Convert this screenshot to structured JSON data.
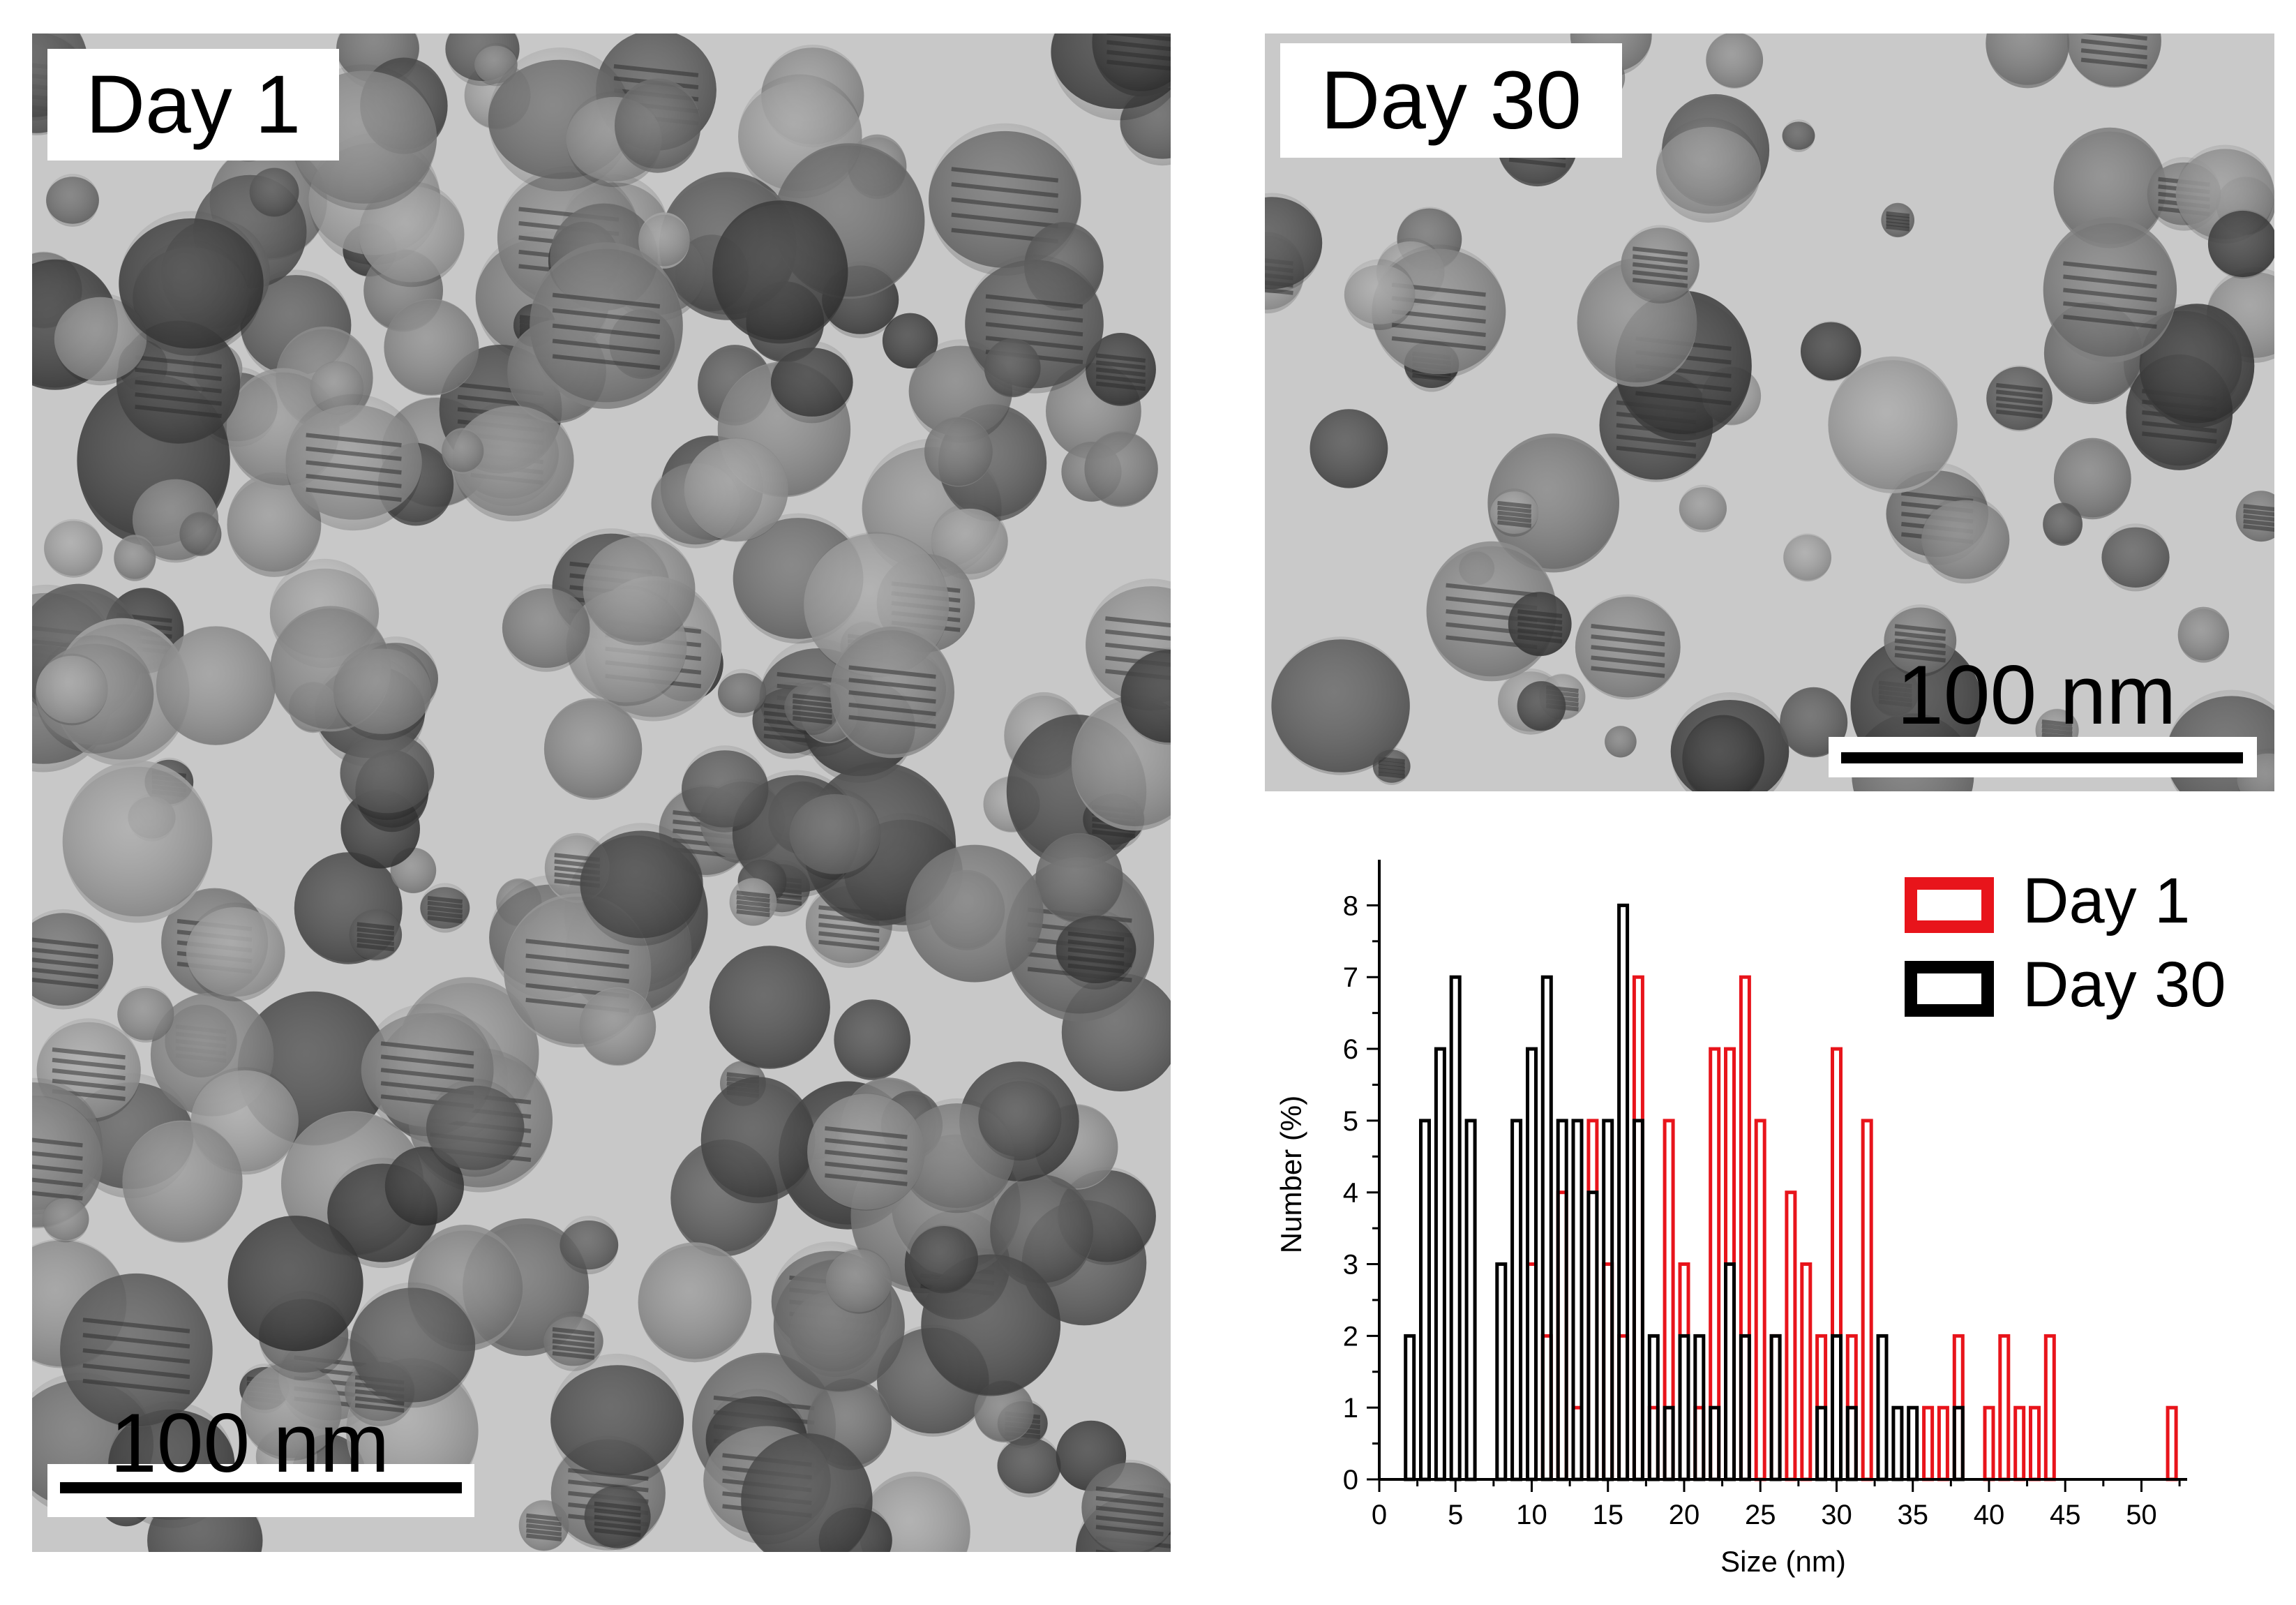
{
  "panels": {
    "day1": {
      "label": "Day 1",
      "scale": "100 nm"
    },
    "day30": {
      "label": "Day 30",
      "scale": "100 nm"
    }
  },
  "chart_data": {
    "type": "bar",
    "xlabel": "Size (nm)",
    "ylabel": "Number (%)",
    "xlim": [
      0,
      53
    ],
    "ylim": [
      0,
      8.5
    ],
    "xticks": [
      0,
      5,
      10,
      15,
      20,
      25,
      30,
      35,
      40,
      45,
      50
    ],
    "yticks": [
      0,
      1,
      2,
      3,
      4,
      5,
      6,
      7,
      8
    ],
    "legend_position": "top-right",
    "bar_style": "outlined",
    "series": [
      {
        "name": "Day 1",
        "color": "#e8141b",
        "x": [
          10,
          11,
          12,
          13,
          14,
          15,
          16,
          17,
          18,
          19,
          20,
          21,
          22,
          23,
          24,
          25,
          26,
          27,
          28,
          29,
          30,
          31,
          32,
          36,
          37,
          38,
          40,
          41,
          42,
          43,
          44,
          52
        ],
        "y": [
          3,
          2,
          4,
          1,
          5,
          3,
          2,
          7,
          1,
          5,
          3,
          1,
          6,
          6,
          7,
          5,
          2,
          4,
          3,
          2,
          6,
          2,
          5,
          1,
          1,
          2,
          1,
          2,
          1,
          1,
          2,
          1
        ]
      },
      {
        "name": "Day 30",
        "color": "#000000",
        "x": [
          2,
          3,
          4,
          5,
          6,
          8,
          9,
          10,
          11,
          12,
          13,
          14,
          15,
          16,
          17,
          18,
          19,
          20,
          21,
          22,
          23,
          24,
          26,
          29,
          30,
          31,
          33,
          34,
          35,
          38
        ],
        "y": [
          2,
          5,
          6,
          7,
          5,
          3,
          5,
          6,
          7,
          5,
          5,
          4,
          5,
          8,
          5,
          2,
          1,
          2,
          2,
          1,
          3,
          2,
          2,
          1,
          2,
          1,
          2,
          1,
          1,
          1
        ]
      }
    ]
  }
}
